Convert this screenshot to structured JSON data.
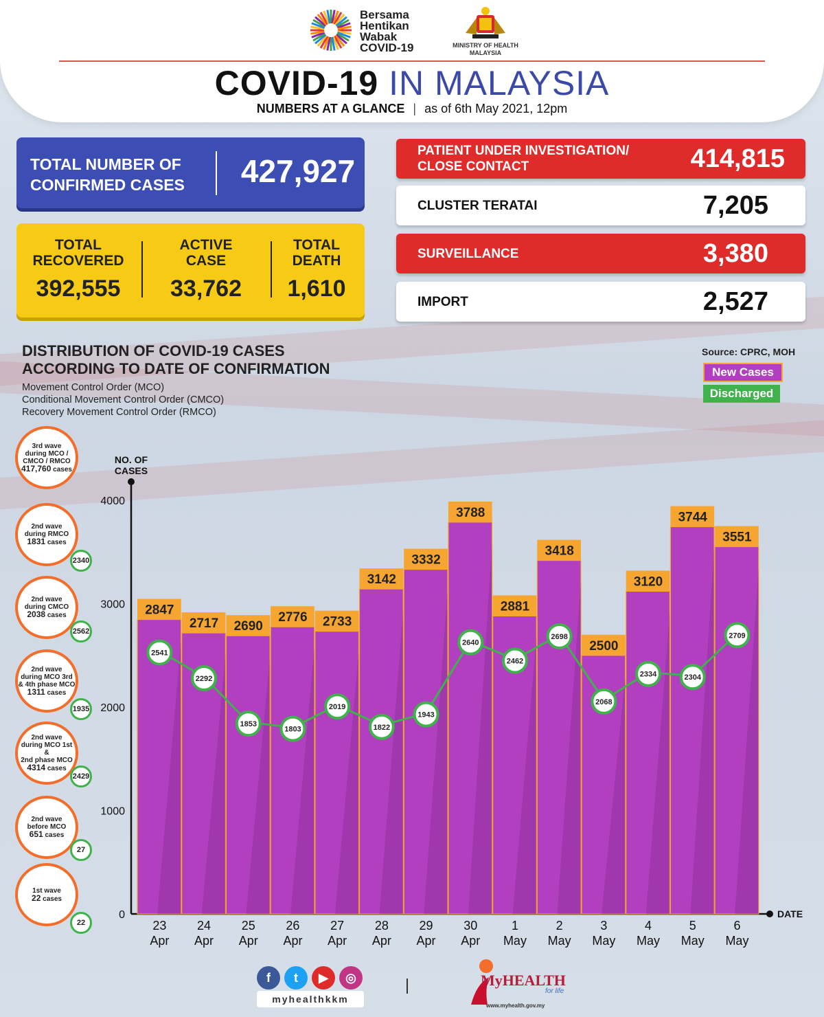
{
  "header": {
    "campaign": [
      "Bersama",
      "Hentikan",
      "Wabak",
      "COVID-19"
    ],
    "ministry": [
      "MINISTRY OF HEALTH",
      "MALAYSIA"
    ],
    "title_part1": "COVID-19",
    "title_part2": "IN MALAYSIA",
    "subtitle_bold": "NUMBERS AT A GLANCE",
    "subtitle_sep": "|",
    "subtitle_date": "as of 6th May 2021, 12pm"
  },
  "confirmed": {
    "label_1": "TOTAL NUMBER OF",
    "label_2": "CONFIRMED CASES",
    "value": "427,927"
  },
  "summary": [
    {
      "label_1": "TOTAL",
      "label_2": "RECOVERED",
      "value": "392,555"
    },
    {
      "label_1": "ACTIVE",
      "label_2": "CASE",
      "value": "33,762"
    },
    {
      "label_1": "TOTAL",
      "label_2": "DEATH",
      "value": "1,610"
    }
  ],
  "categories": [
    {
      "label_1": "PATIENT UNDER INVESTIGATION/",
      "label_2": "CLOSE CONTACT",
      "value": "414,815",
      "style": "red"
    },
    {
      "label_1": "CLUSTER TERATAI",
      "label_2": "",
      "value": "7,205",
      "style": "white"
    },
    {
      "label_1": "SURVEILLANCE",
      "label_2": "",
      "value": "3,380",
      "style": "red"
    },
    {
      "label_1": "IMPORT",
      "label_2": "",
      "value": "2,527",
      "style": "white"
    }
  ],
  "distribution": {
    "title_1": "DISTRIBUTION OF COVID-19 CASES",
    "title_2": "ACCORDING TO DATE OF CONFIRMATION",
    "sub_1": "Movement Control Order (MCO)",
    "sub_2": "Conditional Movement Control Order (CMCO)",
    "sub_3": "Recovery Movement Control Order (RMCO)",
    "source": "Source: CPRC, MOH",
    "legend_new": "New Cases",
    "legend_discharged": "Discharged"
  },
  "waves": [
    {
      "lines": [
        "3rd wave",
        "during MCO /",
        "CMCO / RMCO"
      ],
      "cases": "417,760",
      "unit": "cases",
      "badge": ""
    },
    {
      "lines": [
        "2nd wave",
        "during RMCO"
      ],
      "cases": "1831",
      "unit": "cases",
      "badge": "2340"
    },
    {
      "lines": [
        "2nd wave",
        "during CMCO"
      ],
      "cases": "2038",
      "unit": "cases",
      "badge": "2562"
    },
    {
      "lines": [
        "2nd wave",
        "during MCO 3rd",
        "& 4th phase MCO"
      ],
      "cases": "1311",
      "unit": "cases",
      "badge": "1935"
    },
    {
      "lines": [
        "2nd wave",
        "during MCO 1st &",
        "2nd phase MCO"
      ],
      "cases": "4314",
      "unit": "cases",
      "badge": "2429"
    },
    {
      "lines": [
        "2nd wave",
        "before MCO"
      ],
      "cases": "651",
      "unit": "cases",
      "badge": "27"
    },
    {
      "lines": [
        "1st wave"
      ],
      "cases": "22",
      "unit": "cases",
      "badge": "22"
    }
  ],
  "chart_data": {
    "type": "bar",
    "ylabel": "NO. OF CASES",
    "xlabel": "DATE",
    "ylim": [
      0,
      4000
    ],
    "yticks": [
      "0",
      "1000",
      "2000",
      "3000",
      "4000"
    ],
    "categories": [
      [
        "23",
        "Apr"
      ],
      [
        "24",
        "Apr"
      ],
      [
        "25",
        "Apr"
      ],
      [
        "26",
        "Apr"
      ],
      [
        "27",
        "Apr"
      ],
      [
        "28",
        "Apr"
      ],
      [
        "29",
        "Apr"
      ],
      [
        "30",
        "Apr"
      ],
      [
        "1",
        "May"
      ],
      [
        "2",
        "May"
      ],
      [
        "3",
        "May"
      ],
      [
        "4",
        "May"
      ],
      [
        "5",
        "May"
      ],
      [
        "6",
        "May"
      ]
    ],
    "series": [
      {
        "name": "New Cases",
        "type": "bar",
        "color": "#b23fbf",
        "values": [
          2847,
          2717,
          2690,
          2776,
          2733,
          3142,
          3332,
          3788,
          2881,
          3418,
          2500,
          3120,
          3744,
          3551
        ]
      },
      {
        "name": "Discharged",
        "type": "line",
        "color": "#3fb24b",
        "values": [
          2541,
          2292,
          1853,
          1803,
          2019,
          1822,
          1943,
          2640,
          2462,
          2698,
          2068,
          2334,
          2304,
          2709
        ]
      }
    ]
  },
  "footer": {
    "handle": "myhealthkkm",
    "brand": "MyHEALTH",
    "tagline": "for life",
    "url": "www.myhealth.gov.my"
  },
  "colors": {
    "blue": "#3c4db4",
    "yellow": "#f7cb15",
    "red": "#e02b2b",
    "orange": "#f7a531",
    "purple": "#b23fbf",
    "green": "#3fb24b"
  }
}
